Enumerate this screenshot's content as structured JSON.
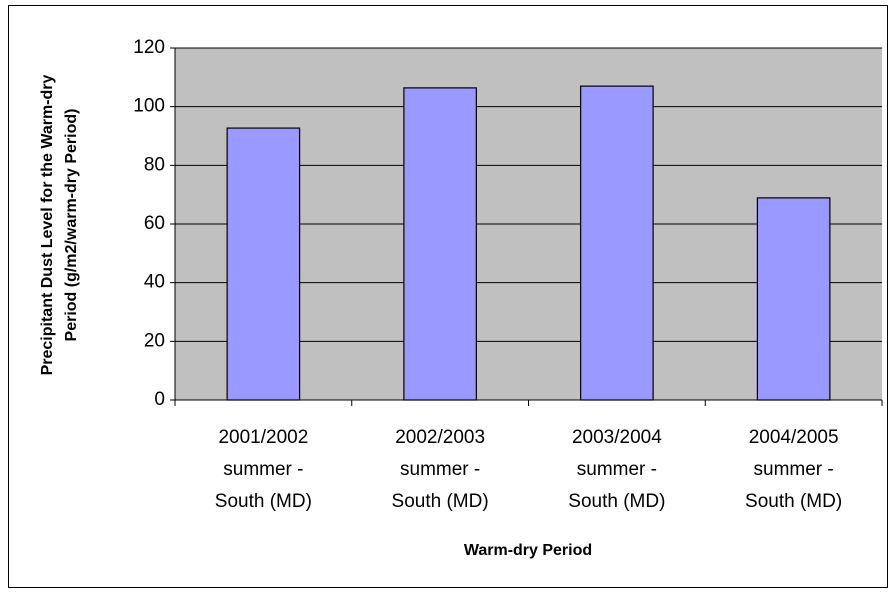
{
  "chart_data": {
    "type": "bar",
    "x_label": "Warm-dry Period",
    "y_label": [
      "Precipitant Dust Level for the Warm-dry",
      "Period (g/m2/warm-dry Period)"
    ],
    "categories": [
      [
        "2001/2002",
        "summer -",
        "South (MD)"
      ],
      [
        "2002/2003",
        "summer -",
        "South (MD)"
      ],
      [
        "2003/2004",
        "summer -",
        "South (MD)"
      ],
      [
        "2004/2005",
        "summer -",
        "South (MD)"
      ]
    ],
    "values": [
      92.7,
      106.4,
      107,
      68.9
    ],
    "color": "#9999ff",
    "ylim": [
      0,
      120
    ],
    "yticks": [
      0,
      20,
      40,
      60,
      80,
      100,
      120
    ],
    "grid": true
  }
}
